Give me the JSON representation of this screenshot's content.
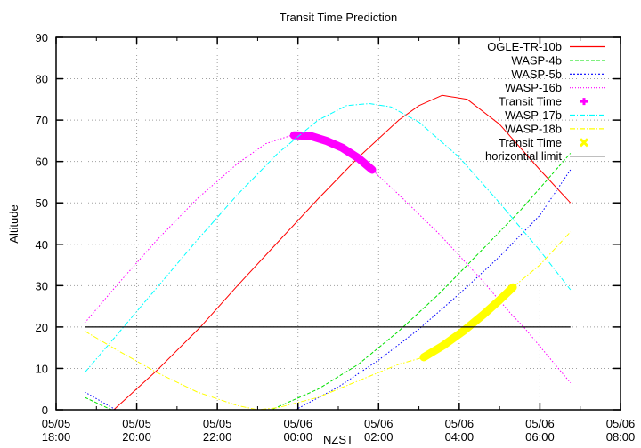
{
  "chart_data": {
    "type": "line",
    "title": "Transit Time Prediction",
    "xlabel": "NZST",
    "ylabel": "Altitude",
    "ylim": [
      0,
      90
    ],
    "yticks": [
      0,
      10,
      20,
      30,
      40,
      50,
      60,
      70,
      80,
      90
    ],
    "xlim_hours_from_start": [
      0,
      14
    ],
    "xticks": [
      {
        "h": 0,
        "date": "05/05",
        "time": "18:00"
      },
      {
        "h": 2,
        "date": "05/05",
        "time": "20:00"
      },
      {
        "h": 4,
        "date": "05/05",
        "time": "22:00"
      },
      {
        "h": 6,
        "date": "05/06",
        "time": "00:00"
      },
      {
        "h": 8,
        "date": "05/06",
        "time": "02:00"
      },
      {
        "h": 10,
        "date": "05/06",
        "time": "04:00"
      },
      {
        "h": 12,
        "date": "05/06",
        "time": "06:00"
      },
      {
        "h": 14,
        "date": "05/06",
        "time": "08:00"
      }
    ],
    "grid": true,
    "legend_position": "top-right",
    "series": [
      {
        "name": "OGLE-TR-10b",
        "color": "#ff0000",
        "style": "solid",
        "points": [
          [
            0.71,
            -6
          ],
          [
            1.43,
            0
          ],
          [
            2.5,
            9.5
          ],
          [
            3.58,
            20
          ],
          [
            4.5,
            30
          ],
          [
            5.5,
            40.5
          ],
          [
            6.5,
            51
          ],
          [
            7.5,
            61
          ],
          [
            8.5,
            70
          ],
          [
            9.0,
            73.5
          ],
          [
            9.58,
            76
          ],
          [
            10.2,
            75
          ],
          [
            11.0,
            69
          ],
          [
            12.0,
            58
          ],
          [
            12.76,
            50
          ]
        ]
      },
      {
        "name": "WASP-4b",
        "color": "#00e000",
        "style": "dashed",
        "points": [
          [
            0.71,
            3
          ],
          [
            1.37,
            0
          ],
          [
            2.5,
            -6
          ],
          [
            4.0,
            -6
          ],
          [
            5.34,
            0
          ],
          [
            6.5,
            5
          ],
          [
            7.5,
            11
          ],
          [
            8.5,
            19
          ],
          [
            9.5,
            28
          ],
          [
            10.5,
            38
          ],
          [
            11.5,
            48
          ],
          [
            12.76,
            62
          ]
        ]
      },
      {
        "name": "WASP-5b",
        "color": "#0000ff",
        "style": "dotted",
        "points": [
          [
            0.71,
            4.3
          ],
          [
            1.48,
            0
          ],
          [
            3.0,
            -7
          ],
          [
            4.5,
            -6
          ],
          [
            5.94,
            0
          ],
          [
            7.0,
            5.5
          ],
          [
            8.0,
            12
          ],
          [
            9.0,
            19.5
          ],
          [
            10.0,
            28
          ],
          [
            11.0,
            37
          ],
          [
            12.0,
            47
          ],
          [
            12.76,
            58
          ]
        ]
      },
      {
        "name": "WASP-16b",
        "color": "#ff00ff",
        "style": "dotted",
        "points": [
          [
            0.71,
            21
          ],
          [
            1.5,
            30
          ],
          [
            2.5,
            41
          ],
          [
            3.5,
            51
          ],
          [
            4.5,
            59.5
          ],
          [
            5.2,
            64.3
          ],
          [
            5.9,
            66.5
          ],
          [
            6.5,
            65.5
          ],
          [
            7.2,
            62.5
          ],
          [
            7.84,
            58
          ],
          [
            8.5,
            52
          ],
          [
            9.5,
            42.5
          ],
          [
            10.5,
            32
          ],
          [
            11.3,
            23
          ],
          [
            11.6,
            20
          ],
          [
            12.2,
            13
          ],
          [
            12.76,
            6.5
          ]
        ]
      },
      {
        "name": "Transit Time",
        "color": "#ff00ff",
        "style": "points-plus",
        "points": [
          [
            5.9,
            66.3
          ],
          [
            6.3,
            66.2
          ],
          [
            6.7,
            65
          ],
          [
            7.1,
            63.3
          ],
          [
            7.5,
            60.8
          ],
          [
            7.84,
            58
          ]
        ]
      },
      {
        "name": "WASP-17b",
        "color": "#00ffff",
        "style": "dashdot",
        "points": [
          [
            0.71,
            9
          ],
          [
            1.5,
            18
          ],
          [
            2.5,
            29.5
          ],
          [
            3.5,
            41
          ],
          [
            4.5,
            52
          ],
          [
            5.5,
            62
          ],
          [
            6.5,
            70
          ],
          [
            7.2,
            73.5
          ],
          [
            7.77,
            74
          ],
          [
            8.3,
            73.2
          ],
          [
            9.0,
            69.5
          ],
          [
            10.0,
            61
          ],
          [
            11.0,
            50
          ],
          [
            12.0,
            38.5
          ],
          [
            12.76,
            29
          ]
        ]
      },
      {
        "name": "WASP-18b",
        "color": "#ffff00",
        "style": "dashdot",
        "points": [
          [
            0.71,
            19
          ],
          [
            1.5,
            14.5
          ],
          [
            2.5,
            9
          ],
          [
            3.5,
            4.3
          ],
          [
            4.5,
            1
          ],
          [
            5.0,
            0
          ],
          [
            5.5,
            0.5
          ],
          [
            6.5,
            3
          ],
          [
            7.5,
            7
          ],
          [
            8.5,
            11
          ],
          [
            9.12,
            12.7
          ],
          [
            10.0,
            18
          ],
          [
            11.0,
            26.5
          ],
          [
            11.33,
            29.6
          ],
          [
            12.0,
            35
          ],
          [
            12.76,
            43
          ]
        ]
      },
      {
        "name": "Transit Time",
        "color": "#ffff00",
        "style": "points-cross",
        "points": [
          [
            9.12,
            12.7
          ],
          [
            9.6,
            15.5
          ],
          [
            10.1,
            19
          ],
          [
            10.6,
            23
          ],
          [
            11.0,
            26.5
          ],
          [
            11.33,
            29.6
          ]
        ]
      },
      {
        "name": "horizontial limit",
        "color": "#000000",
        "style": "solid",
        "points": [
          [
            0.71,
            20
          ],
          [
            12.76,
            20
          ]
        ]
      }
    ]
  },
  "legend": [
    {
      "label": "OGLE-TR-10b",
      "color": "#ff0000",
      "kind": "line",
      "dash": ""
    },
    {
      "label": "WASP-4b",
      "color": "#00e000",
      "kind": "line",
      "dash": "4,2"
    },
    {
      "label": "WASP-5b",
      "color": "#0000ff",
      "kind": "line",
      "dash": "2,2"
    },
    {
      "label": "WASP-16b",
      "color": "#ff00ff",
      "kind": "line",
      "dash": "1,2"
    },
    {
      "label": "Transit Time",
      "color": "#ff00ff",
      "kind": "plus",
      "dash": ""
    },
    {
      "label": "WASP-17b",
      "color": "#00ffff",
      "kind": "line",
      "dash": "6,2,1,2"
    },
    {
      "label": "WASP-18b",
      "color": "#ffff00",
      "kind": "line",
      "dash": "6,2,1,2"
    },
    {
      "label": "Transit Time",
      "color": "#ffff00",
      "kind": "cross",
      "dash": ""
    },
    {
      "label": "horizontial limit",
      "color": "#000000",
      "kind": "line",
      "dash": ""
    }
  ]
}
